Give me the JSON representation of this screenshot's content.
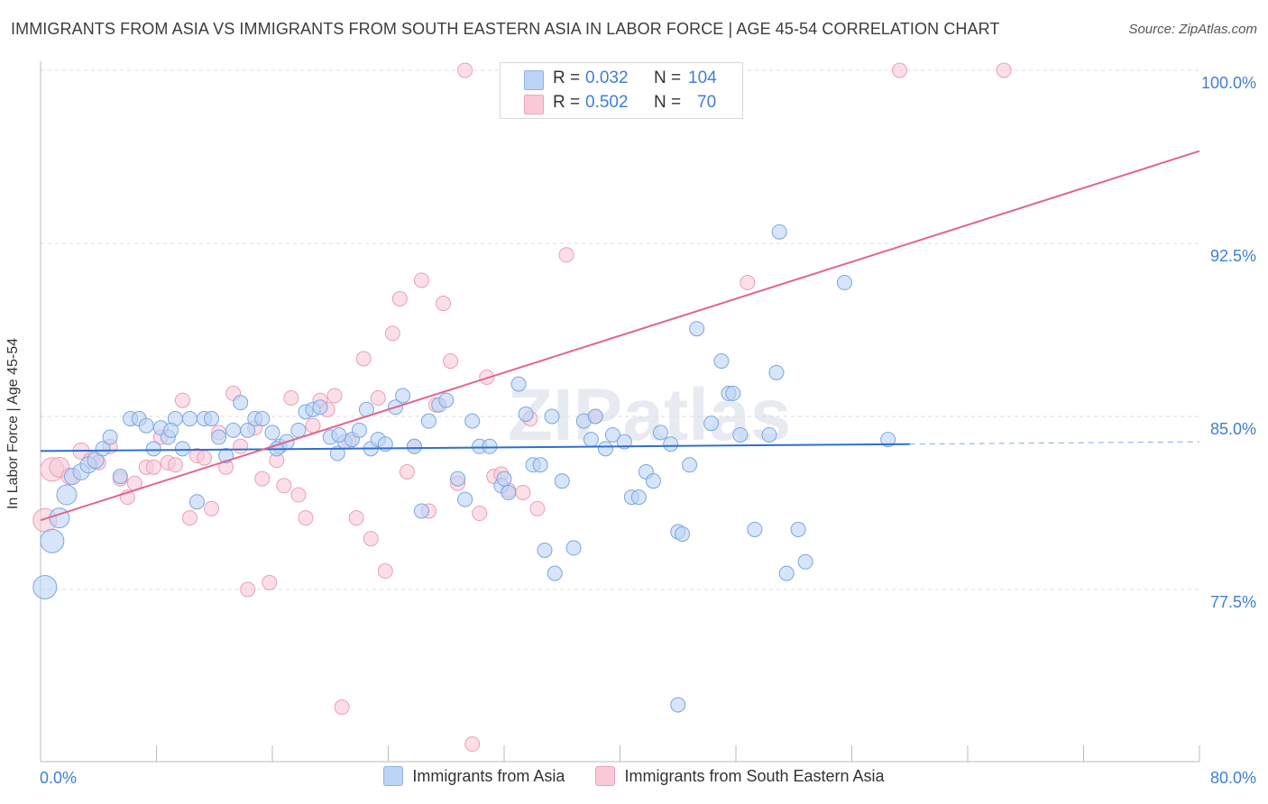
{
  "title": "IMMIGRANTS FROM ASIA VS IMMIGRANTS FROM SOUTH EASTERN ASIA IN LABOR FORCE | AGE 45-54 CORRELATION CHART",
  "source": "Source: ZipAtlas.com",
  "watermark": "ZIPatlas",
  "colors": {
    "blue_fill": "#bcd4f5",
    "blue_stroke": "#7aa6e3",
    "blue_line": "#2e6fd3",
    "pink_fill": "#f9c9d7",
    "pink_stroke": "#ee9db5",
    "pink_line": "#e3648e",
    "tick_label": "#3f7fd6",
    "grid": "#dddddd"
  },
  "stats_box": {
    "rows": [
      {
        "series": "Immigrants from Asia",
        "r_label": "R =",
        "r_value": "0.032",
        "n_label": "N =",
        "n_value": "104"
      },
      {
        "series": "Immigrants from South Eastern Asia",
        "r_label": "R =",
        "r_value": "0.502",
        "n_label": "N =",
        "n_value": "70"
      }
    ]
  },
  "chart_data": {
    "type": "scatter",
    "title": "IMMIGRANTS FROM ASIA VS IMMIGRANTS FROM SOUTH EASTERN ASIA IN LABOR FORCE | AGE 45-54 CORRELATION CHART",
    "xlabel": "",
    "ylabel": "In Labor Force | Age 45-54",
    "xlim": [
      0,
      80
    ],
    "ylim": [
      70,
      101
    ],
    "x_tick_labels": [
      "0.0%",
      "80.0%"
    ],
    "y_ticks": [
      77.5,
      85.0,
      92.5,
      100.0
    ],
    "y_tick_labels": [
      "77.5%",
      "85.0%",
      "92.5%",
      "100.0%"
    ],
    "grid": "horizontal dashed",
    "legend_position": "bottom",
    "series": [
      {
        "name": "Immigrants from Asia",
        "color": "#bcd4f5",
        "trend": {
          "x": [
            0,
            60
          ],
          "y": [
            83.5,
            83.8
          ],
          "dashed_extension_to": [
            80,
            83.9
          ]
        },
        "points": [
          [
            0.3,
            77.6
          ],
          [
            0.8,
            79.6
          ],
          [
            1.3,
            80.6
          ],
          [
            1.8,
            81.6
          ],
          [
            2.2,
            82.4
          ],
          [
            2.8,
            82.6
          ],
          [
            3.3,
            82.9
          ],
          [
            3.8,
            83.1
          ],
          [
            4.3,
            83.6
          ],
          [
            4.8,
            84.1
          ],
          [
            5.5,
            82.4
          ],
          [
            6.2,
            84.9
          ],
          [
            6.8,
            84.9
          ],
          [
            7.3,
            84.6
          ],
          [
            7.8,
            83.6
          ],
          [
            8.3,
            84.5
          ],
          [
            8.8,
            84.1
          ],
          [
            9.3,
            84.9
          ],
          [
            9.8,
            83.6
          ],
          [
            10.3,
            84.9
          ],
          [
            10.8,
            81.3
          ],
          [
            11.3,
            84.9
          ],
          [
            11.8,
            84.9
          ],
          [
            12.3,
            84.1
          ],
          [
            12.8,
            83.3
          ],
          [
            13.3,
            84.4
          ],
          [
            13.8,
            85.6
          ],
          [
            14.3,
            84.4
          ],
          [
            14.8,
            84.9
          ],
          [
            15.3,
            84.9
          ],
          [
            16.0,
            84.3
          ],
          [
            16.5,
            83.7
          ],
          [
            17.0,
            83.9
          ],
          [
            17.8,
            84.4
          ],
          [
            18.3,
            85.2
          ],
          [
            18.8,
            85.3
          ],
          [
            19.3,
            85.4
          ],
          [
            20.0,
            84.1
          ],
          [
            20.5,
            83.4
          ],
          [
            21.0,
            83.9
          ],
          [
            21.5,
            84.0
          ],
          [
            22.0,
            84.4
          ],
          [
            22.5,
            85.3
          ],
          [
            22.8,
            83.6
          ],
          [
            23.3,
            84.0
          ],
          [
            23.8,
            83.8
          ],
          [
            24.5,
            85.4
          ],
          [
            25.0,
            85.9
          ],
          [
            25.8,
            83.7
          ],
          [
            26.3,
            80.9
          ],
          [
            26.8,
            84.8
          ],
          [
            27.5,
            85.5
          ],
          [
            28.0,
            85.7
          ],
          [
            28.8,
            82.3
          ],
          [
            29.3,
            81.4
          ],
          [
            29.8,
            84.8
          ],
          [
            30.3,
            83.7
          ],
          [
            31.0,
            83.7
          ],
          [
            31.8,
            82.0
          ],
          [
            32.0,
            82.3
          ],
          [
            32.3,
            81.7
          ],
          [
            33.0,
            86.4
          ],
          [
            33.5,
            85.1
          ],
          [
            34.0,
            82.9
          ],
          [
            34.5,
            82.9
          ],
          [
            34.8,
            79.2
          ],
          [
            35.3,
            85.0
          ],
          [
            35.5,
            78.2
          ],
          [
            36.0,
            82.2
          ],
          [
            36.8,
            79.3
          ],
          [
            37.5,
            84.8
          ],
          [
            38.0,
            84.0
          ],
          [
            38.3,
            85.0
          ],
          [
            39.0,
            83.6
          ],
          [
            39.5,
            84.2
          ],
          [
            40.3,
            83.9
          ],
          [
            40.8,
            81.5
          ],
          [
            41.3,
            81.5
          ],
          [
            41.8,
            82.6
          ],
          [
            42.3,
            82.2
          ],
          [
            42.8,
            84.3
          ],
          [
            43.5,
            83.8
          ],
          [
            44.0,
            80.0
          ],
          [
            44.3,
            79.9
          ],
          [
            44.8,
            82.9
          ],
          [
            45.3,
            88.8
          ],
          [
            46.3,
            84.7
          ],
          [
            47.0,
            87.4
          ],
          [
            47.5,
            86.0
          ],
          [
            47.8,
            86.0
          ],
          [
            48.3,
            84.2
          ],
          [
            49.3,
            80.1
          ],
          [
            50.3,
            84.2
          ],
          [
            50.8,
            86.9
          ],
          [
            51.0,
            93.0
          ],
          [
            51.5,
            78.2
          ],
          [
            52.3,
            80.1
          ],
          [
            52.8,
            78.7
          ],
          [
            55.5,
            90.8
          ],
          [
            58.5,
            84.0
          ],
          [
            44.0,
            72.5
          ],
          [
            20.6,
            84.2
          ],
          [
            16.3,
            83.6
          ],
          [
            9.0,
            84.4
          ]
        ],
        "sizes_note": "larger markers near x=0"
      },
      {
        "name": "Immigrants from South Eastern Asia",
        "color": "#f9c9d7",
        "trend": {
          "x": [
            0,
            80
          ],
          "y": [
            80.5,
            96.5
          ]
        },
        "points": [
          [
            0.3,
            80.5
          ],
          [
            0.8,
            82.7
          ],
          [
            1.3,
            82.8
          ],
          [
            2.0,
            82.4
          ],
          [
            2.8,
            83.5
          ],
          [
            3.5,
            83.1
          ],
          [
            4.0,
            83.0
          ],
          [
            4.8,
            83.7
          ],
          [
            5.5,
            82.3
          ],
          [
            6.0,
            81.5
          ],
          [
            6.5,
            82.1
          ],
          [
            7.3,
            82.8
          ],
          [
            7.8,
            82.8
          ],
          [
            8.3,
            84.1
          ],
          [
            8.8,
            83.0
          ],
          [
            9.3,
            82.9
          ],
          [
            9.8,
            85.7
          ],
          [
            10.3,
            80.6
          ],
          [
            10.8,
            83.3
          ],
          [
            11.3,
            83.2
          ],
          [
            11.8,
            81.0
          ],
          [
            12.3,
            84.3
          ],
          [
            12.8,
            82.8
          ],
          [
            13.3,
            86.0
          ],
          [
            13.8,
            83.7
          ],
          [
            14.3,
            77.5
          ],
          [
            14.8,
            84.5
          ],
          [
            15.3,
            82.3
          ],
          [
            15.8,
            77.8
          ],
          [
            16.3,
            83.1
          ],
          [
            16.8,
            82.0
          ],
          [
            17.3,
            85.8
          ],
          [
            17.8,
            81.6
          ],
          [
            18.3,
            80.6
          ],
          [
            18.8,
            84.6
          ],
          [
            19.3,
            85.7
          ],
          [
            19.8,
            85.3
          ],
          [
            20.3,
            85.9
          ],
          [
            20.8,
            72.4
          ],
          [
            21.3,
            83.9
          ],
          [
            21.8,
            80.6
          ],
          [
            22.3,
            87.5
          ],
          [
            22.8,
            79.7
          ],
          [
            23.3,
            85.8
          ],
          [
            23.8,
            78.3
          ],
          [
            24.3,
            88.6
          ],
          [
            24.8,
            90.1
          ],
          [
            25.3,
            82.6
          ],
          [
            25.8,
            83.7
          ],
          [
            26.3,
            90.9
          ],
          [
            26.8,
            80.9
          ],
          [
            27.3,
            85.5
          ],
          [
            27.8,
            89.9
          ],
          [
            28.3,
            87.4
          ],
          [
            28.8,
            82.1
          ],
          [
            29.3,
            100.0
          ],
          [
            29.8,
            70.8
          ],
          [
            30.3,
            80.8
          ],
          [
            30.8,
            86.7
          ],
          [
            31.3,
            82.4
          ],
          [
            31.8,
            82.5
          ],
          [
            32.3,
            81.8
          ],
          [
            33.3,
            81.7
          ],
          [
            33.8,
            84.9
          ],
          [
            34.3,
            81.0
          ],
          [
            36.3,
            92.0
          ],
          [
            38.3,
            85.0
          ],
          [
            48.8,
            90.8
          ],
          [
            59.3,
            100.0
          ],
          [
            66.5,
            100.0
          ]
        ],
        "sizes_note": "larger markers near x=0"
      }
    ]
  }
}
